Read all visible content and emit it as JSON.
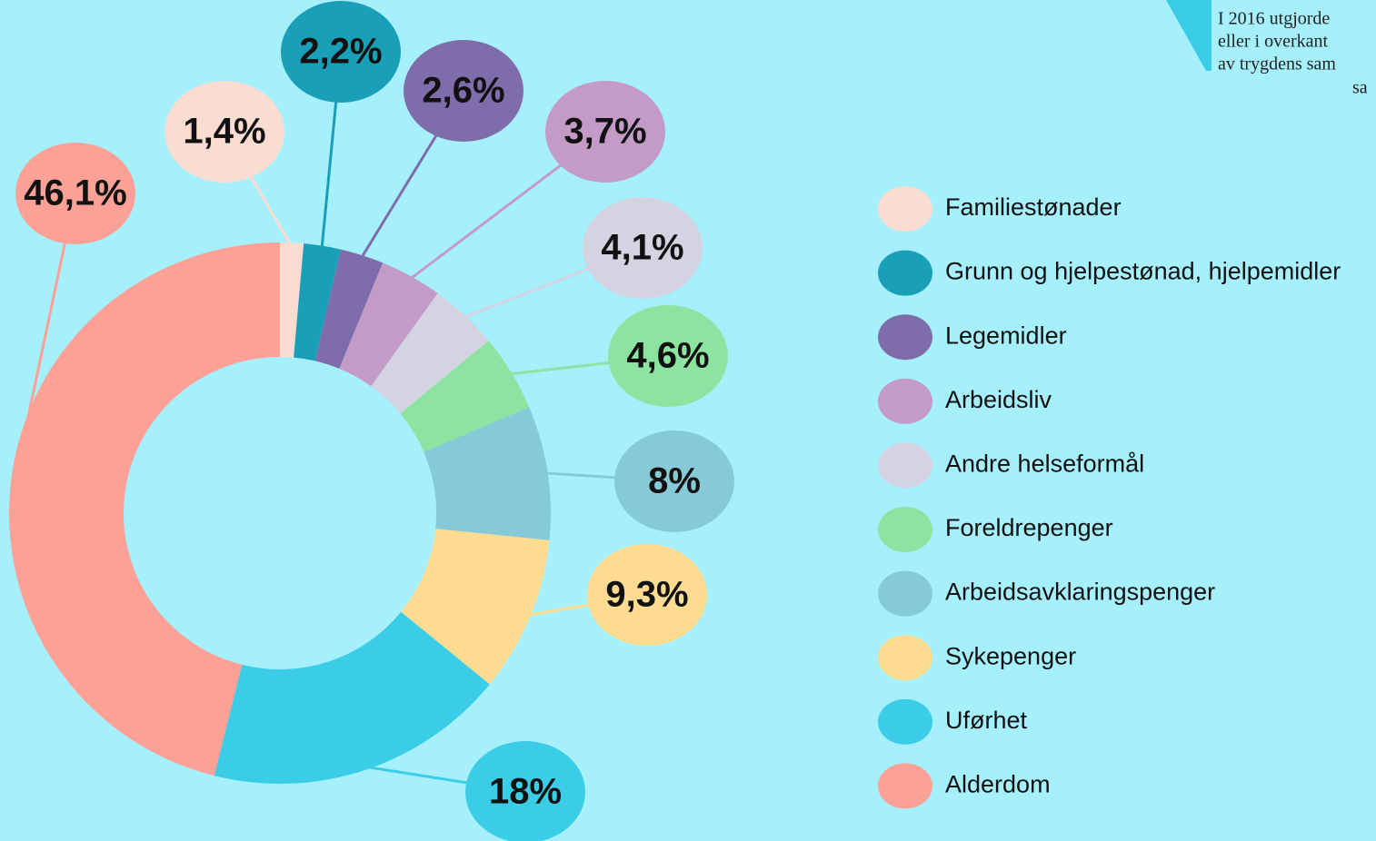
{
  "chart_data": {
    "type": "donut",
    "categories": [
      "Familiestønader",
      "Grunn og hjelpestønad, hjelpemidler",
      "Legemidler",
      "Arbeidsliv",
      "Andre helseformål",
      "Foreldrepenger",
      "Arbeidsavklaringspenger",
      "Sykepenger",
      "Uførhet",
      "Alderdom"
    ],
    "values": [
      1.4,
      2.2,
      2.6,
      3.7,
      4.1,
      4.6,
      8,
      9.3,
      18,
      46.1
    ],
    "value_labels": [
      "1,4%",
      "2,2%",
      "2,6%",
      "3,7%",
      "4,1%",
      "4,6%",
      "8%",
      "9,3%",
      "18%",
      "46,1%"
    ],
    "colors": [
      "#fbdcd1",
      "#1a9fb8",
      "#7f6dab",
      "#c49ac7",
      "#d3d3e2",
      "#8de4a0",
      "#86cad8",
      "#fddc92",
      "#3bcde7",
      "#fda096"
    ],
    "annotation": [
      "I 2016 utgjorde",
      "eller i overkant",
      "av trygdens sam",
      "sa"
    ]
  }
}
